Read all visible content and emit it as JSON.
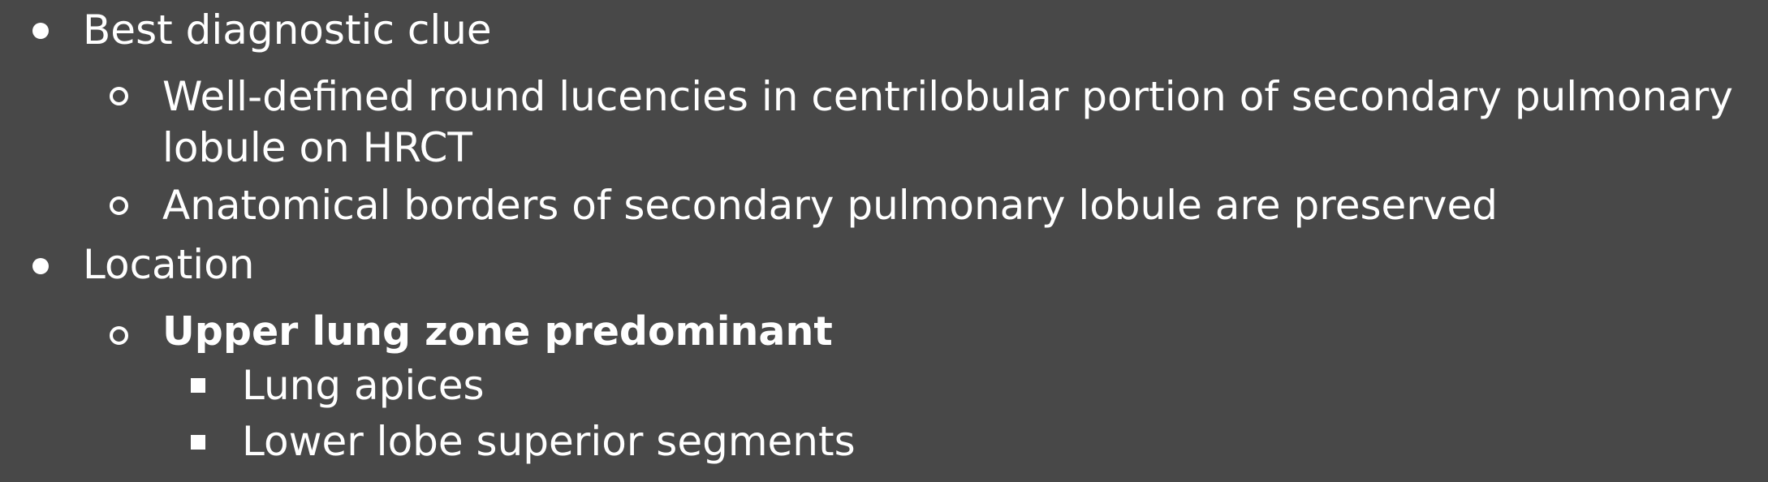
{
  "outline": {
    "item1": {
      "text": "Best diagnostic clue",
      "sub1": {
        "line1": "Well-defined round lucencies in centrilobular portion of secondary pulmonary",
        "line2": "lobule on HRCT"
      },
      "sub2": "Anatomical borders of secondary pulmonary lobule are preserved"
    },
    "item2": {
      "text": "Location",
      "sub1": {
        "text": "Upper lung zone predominant",
        "sub1": "Lung apices",
        "sub2": "Lower lobe superior segments"
      }
    }
  }
}
